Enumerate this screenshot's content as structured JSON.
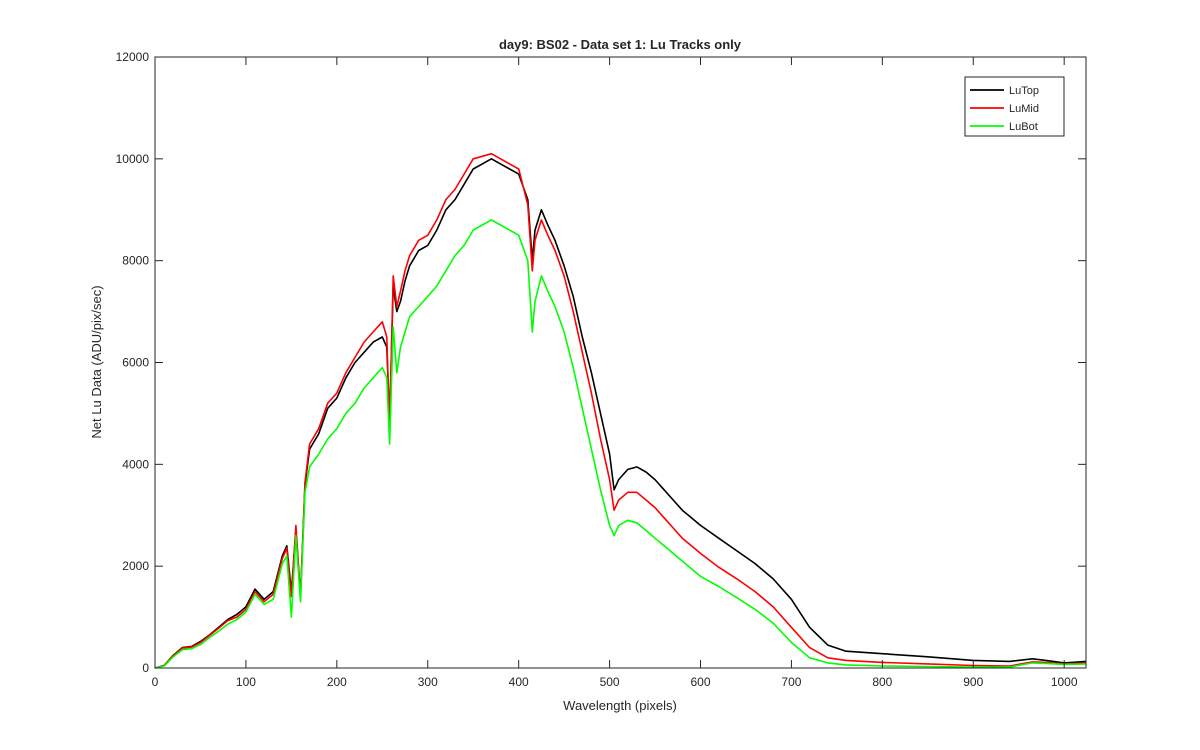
{
  "chart_data": {
    "type": "line",
    "title": "day9: BS02 - Data set 1: Lu Tracks only",
    "xlabel": "Wavelength (pixels)",
    "ylabel": "Net Lu Data (ADU/pix/sec)",
    "xlim": [
      0,
      1024
    ],
    "ylim": [
      0,
      12000
    ],
    "xticks": [
      0,
      100,
      200,
      300,
      400,
      500,
      600,
      700,
      800,
      900,
      1000
    ],
    "yticks": [
      0,
      2000,
      4000,
      6000,
      8000,
      10000,
      12000
    ],
    "grid": false,
    "legend_position": "top-right",
    "x": [
      0,
      10,
      20,
      30,
      40,
      50,
      60,
      70,
      80,
      90,
      100,
      110,
      120,
      130,
      140,
      145,
      150,
      155,
      160,
      165,
      170,
      180,
      190,
      200,
      210,
      220,
      230,
      240,
      250,
      255,
      258,
      262,
      266,
      270,
      275,
      280,
      290,
      300,
      310,
      320,
      330,
      340,
      350,
      360,
      370,
      380,
      390,
      400,
      410,
      415,
      418,
      425,
      432,
      440,
      450,
      460,
      470,
      480,
      490,
      500,
      505,
      510,
      520,
      530,
      540,
      550,
      560,
      570,
      580,
      590,
      600,
      620,
      640,
      660,
      680,
      700,
      720,
      740,
      760,
      800,
      850,
      900,
      940,
      965,
      980,
      1000,
      1024
    ],
    "series": [
      {
        "name": "LuTop",
        "color": "#000000",
        "values": [
          0,
          50,
          250,
          400,
          420,
          520,
          650,
          800,
          950,
          1050,
          1200,
          1550,
          1350,
          1500,
          2200,
          2400,
          1500,
          2700,
          1400,
          3600,
          4300,
          4600,
          5100,
          5300,
          5700,
          6000,
          6200,
          6400,
          6500,
          6300,
          4800,
          7500,
          7000,
          7200,
          7600,
          7900,
          8200,
          8300,
          8600,
          9000,
          9200,
          9500,
          9800,
          9900,
          10000,
          9900,
          9800,
          9700,
          9200,
          8000,
          8600,
          9000,
          8700,
          8400,
          7900,
          7300,
          6500,
          5800,
          5000,
          4200,
          3500,
          3700,
          3900,
          3950,
          3850,
          3700,
          3500,
          3300,
          3100,
          2950,
          2800,
          2550,
          2300,
          2050,
          1750,
          1350,
          800,
          450,
          330,
          280,
          220,
          150,
          130,
          180,
          150,
          100,
          130
        ]
      },
      {
        "name": "LuMid",
        "color": "#ff0000",
        "values": [
          0,
          50,
          240,
          390,
          410,
          500,
          640,
          780,
          930,
          1000,
          1150,
          1500,
          1300,
          1450,
          2150,
          2350,
          1400,
          2800,
          1400,
          3650,
          4400,
          4700,
          5200,
          5400,
          5800,
          6100,
          6400,
          6600,
          6800,
          6500,
          4700,
          7700,
          7100,
          7400,
          7800,
          8100,
          8400,
          8500,
          8800,
          9200,
          9400,
          9700,
          10000,
          10050,
          10100,
          10000,
          9900,
          9800,
          9100,
          7800,
          8400,
          8800,
          8500,
          8200,
          7700,
          7000,
          6200,
          5400,
          4500,
          3700,
          3100,
          3300,
          3450,
          3450,
          3300,
          3150,
          2950,
          2750,
          2550,
          2400,
          2250,
          1980,
          1750,
          1500,
          1200,
          800,
          400,
          200,
          150,
          110,
          80,
          50,
          40,
          120,
          110,
          80,
          100
        ]
      },
      {
        "name": "LuBot",
        "color": "#00ff00",
        "values": [
          0,
          40,
          220,
          360,
          380,
          460,
          600,
          720,
          860,
          950,
          1100,
          1450,
          1250,
          1350,
          2050,
          2200,
          1000,
          2600,
          1300,
          3450,
          3950,
          4200,
          4500,
          4700,
          5000,
          5200,
          5500,
          5700,
          5900,
          5700,
          4400,
          6700,
          5800,
          6300,
          6600,
          6900,
          7100,
          7300,
          7500,
          7800,
          8100,
          8300,
          8600,
          8700,
          8800,
          8700,
          8600,
          8500,
          8000,
          6600,
          7200,
          7700,
          7400,
          7100,
          6600,
          5900,
          5100,
          4300,
          3500,
          2800,
          2600,
          2800,
          2900,
          2850,
          2700,
          2550,
          2400,
          2250,
          2100,
          1950,
          1800,
          1600,
          1380,
          1150,
          880,
          500,
          200,
          100,
          60,
          40,
          30,
          20,
          20,
          100,
          90,
          70,
          80
        ]
      }
    ]
  }
}
